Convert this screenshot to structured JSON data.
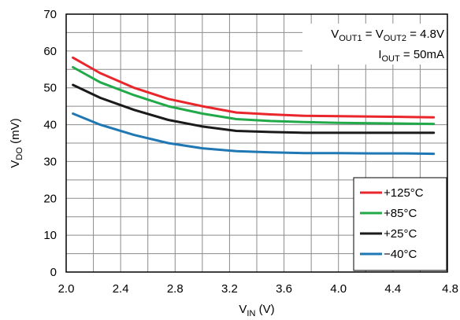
{
  "chart_data": {
    "type": "line",
    "xlabel": {
      "main": "V",
      "sub": "IN",
      "unit": " (V)"
    },
    "ylabel": {
      "main": "V",
      "sub": "DO",
      "unit": " (mV)"
    },
    "xlim": [
      2.0,
      4.8
    ],
    "ylim": [
      0,
      70
    ],
    "x_ticks": [
      "2.0",
      "2.4",
      "2.8",
      "3.2",
      "3.6",
      "4.0",
      "4.4",
      "4.8"
    ],
    "x_tick_values": [
      2.0,
      2.4,
      2.8,
      3.2,
      3.6,
      4.0,
      4.4,
      4.8
    ],
    "y_ticks": [
      "0",
      "10",
      "20",
      "30",
      "40",
      "50",
      "60",
      "70"
    ],
    "y_tick_values": [
      0,
      10,
      20,
      30,
      40,
      50,
      60,
      70
    ],
    "grid_x_values": [
      2.2,
      2.4,
      2.6,
      2.8,
      3.0,
      3.2,
      3.4,
      3.6,
      3.8,
      4.0,
      4.2,
      4.4,
      4.6
    ],
    "grid_y_values": [
      5,
      10,
      15,
      20,
      25,
      30,
      35,
      40,
      45,
      50,
      55,
      60,
      65
    ],
    "grid": true,
    "legend_position": "bottom-right",
    "annotation": {
      "line1": {
        "a": "V",
        "a_sub": "OUT1",
        "b": " = V",
        "b_sub": "OUT2",
        "c": " = 4.8V"
      },
      "line2": {
        "a": "I",
        "a_sub": "OUT",
        "b": " = 50mA"
      }
    },
    "series": [
      {
        "name": "+125°C",
        "color": "#e8262b",
        "x": [
          2.05,
          2.25,
          2.5,
          2.75,
          3.0,
          3.25,
          3.5,
          3.75,
          4.0,
          4.25,
          4.5,
          4.7
        ],
        "y": [
          58.2,
          54.0,
          50.0,
          47.0,
          45.0,
          43.3,
          42.8,
          42.4,
          42.3,
          42.2,
          42.1,
          42.0
        ]
      },
      {
        "name": "+85°C",
        "color": "#22a94a",
        "x": [
          2.05,
          2.25,
          2.5,
          2.75,
          3.0,
          3.25,
          3.5,
          3.75,
          4.0,
          4.25,
          4.5,
          4.7
        ],
        "y": [
          55.6,
          51.5,
          48.0,
          45.0,
          43.0,
          41.5,
          41.0,
          40.7,
          40.5,
          40.4,
          40.3,
          40.2
        ]
      },
      {
        "name": "+25°C",
        "color": "#1a1a1a",
        "x": [
          2.05,
          2.25,
          2.5,
          2.75,
          3.0,
          3.25,
          3.5,
          3.75,
          4.0,
          4.25,
          4.5,
          4.7
        ],
        "y": [
          50.8,
          47.3,
          44.0,
          41.3,
          39.5,
          38.3,
          38.0,
          37.8,
          37.8,
          37.8,
          37.8,
          37.8
        ]
      },
      {
        "name": "−40°C",
        "color": "#1f77b4",
        "x": [
          2.05,
          2.25,
          2.5,
          2.75,
          3.0,
          3.25,
          3.5,
          3.75,
          4.0,
          4.25,
          4.5,
          4.7
        ],
        "y": [
          43.0,
          40.0,
          37.2,
          35.0,
          33.6,
          32.8,
          32.5,
          32.3,
          32.3,
          32.2,
          32.2,
          32.1
        ]
      }
    ]
  }
}
